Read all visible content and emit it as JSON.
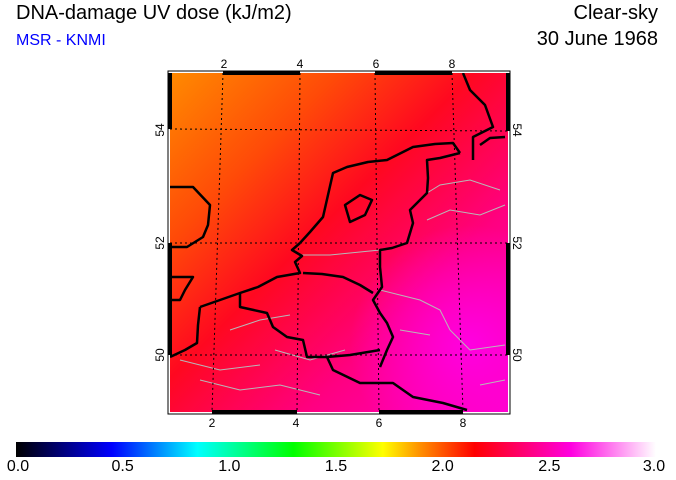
{
  "header": {
    "title": "DNA-damage UV dose (kJ/m2)",
    "source": "MSR - KNMI",
    "condition": "Clear-sky",
    "date": "30 June 1968"
  },
  "map": {
    "region": "Benelux",
    "lon_ticks_top": [
      "2",
      "4",
      "6",
      "8"
    ],
    "lon_ticks_bottom": [
      "2",
      "4",
      "6",
      "8"
    ],
    "lat_ticks_left": [
      "54",
      "52",
      "50"
    ],
    "lat_ticks_right": [
      "54",
      "52",
      "50"
    ]
  },
  "colorbar": {
    "min": 0.0,
    "max": 3.0,
    "labels": [
      "0.0",
      "0.5",
      "1.0",
      "1.5",
      "2.0",
      "2.5",
      "3.0"
    ],
    "stops": [
      {
        "v": 0.0,
        "c": "#000000"
      },
      {
        "v": 0.45,
        "c": "#0000ff"
      },
      {
        "v": 0.85,
        "c": "#00ffff"
      },
      {
        "v": 1.3,
        "c": "#00ff00"
      },
      {
        "v": 1.72,
        "c": "#ffff00"
      },
      {
        "v": 1.9,
        "c": "#ff8c00"
      },
      {
        "v": 2.15,
        "c": "#ff0000"
      },
      {
        "v": 2.6,
        "c": "#ff00e0"
      },
      {
        "v": 3.0,
        "c": "#ffffff"
      }
    ]
  }
}
